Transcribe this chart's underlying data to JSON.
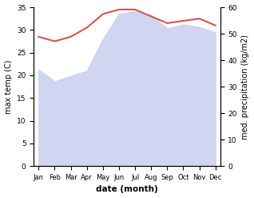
{
  "months": [
    "Jan",
    "Feb",
    "Mar",
    "Apr",
    "May",
    "Jun",
    "Jul",
    "Aug",
    "Sep",
    "Oct",
    "Nov",
    "Dec"
  ],
  "x": [
    0,
    1,
    2,
    3,
    4,
    5,
    6,
    7,
    8,
    9,
    10,
    11
  ],
  "temperature": [
    28.5,
    27.5,
    28.5,
    30.5,
    33.5,
    34.5,
    34.5,
    33.0,
    31.5,
    32.0,
    32.5,
    31.0
  ],
  "precipitation": [
    36.5,
    32.0,
    34.0,
    36.0,
    48.0,
    57.5,
    58.5,
    57.0,
    52.0,
    53.5,
    52.5,
    50.5
  ],
  "temp_color": "#d9534f",
  "precip_fill_color": "#c8cff0",
  "ylim_temp": [
    0,
    35
  ],
  "ylim_precip": [
    0,
    60
  ],
  "yticks_temp": [
    0,
    5,
    10,
    15,
    20,
    25,
    30,
    35
  ],
  "yticks_precip": [
    0,
    10,
    20,
    30,
    40,
    50,
    60
  ],
  "ylabel_left": "max temp (C)",
  "ylabel_right": "med. precipitation (kg/m2)",
  "xlabel": "date (month)",
  "bg_color": "#ffffff",
  "line_width": 1.5,
  "fill_alpha": 0.85
}
